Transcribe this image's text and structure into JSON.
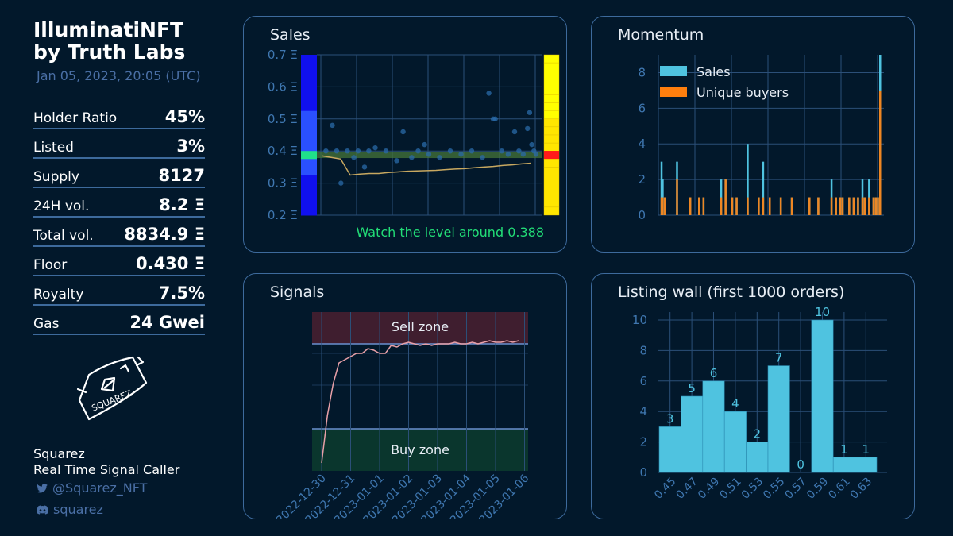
{
  "collection": {
    "name_line1": "IlluminatiNFT",
    "name_line2": "by Truth Labs",
    "date": "Jan 05, 2023, 20:05 (UTC)"
  },
  "stats": [
    {
      "label": "Holder Ratio",
      "value": "45%"
    },
    {
      "label": "Listed",
      "value": "3%"
    },
    {
      "label": "Supply",
      "value": "8127"
    },
    {
      "label": "24H vol.",
      "value": "8.2 Ξ"
    },
    {
      "label": "Total vol.",
      "value": "8834.9 Ξ"
    },
    {
      "label": "Floor",
      "value": "0.430 Ξ"
    },
    {
      "label": "Royalty",
      "value": "7.5%"
    },
    {
      "label": "Gas",
      "value": "24 Gwei"
    }
  ],
  "signature": {
    "text": "SQUAREZ"
  },
  "creator": {
    "name": "Squarez",
    "tagline": "Real Time Signal Caller",
    "twitter": "@Squarez_NFT",
    "discord": "squarez"
  },
  "icons": {
    "twitter": "twitter-icon",
    "discord": "discord-icon"
  },
  "colors": {
    "background": "#02182b",
    "border": "#3d6a9c",
    "muted": "#4a6fa5",
    "sales": "#4fc3e0",
    "buyers": "#ff7f0e",
    "signal_line": "#e8a0a8",
    "watch_text": "#22dd77"
  },
  "chart_data": [
    {
      "id": "sales",
      "type": "scatter",
      "title": "Sales",
      "y_ticks": [
        "0.7 Ξ",
        "0.6 Ξ",
        "0.5 Ξ",
        "0.4 Ξ",
        "0.3 Ξ",
        "0.2 Ξ"
      ],
      "ylim": [
        0.2,
        0.7
      ],
      "annotation": "Watch the level around 0.388",
      "level": 0.388,
      "x": [
        0.02,
        0.05,
        0.07,
        0.09,
        0.12,
        0.15,
        0.17,
        0.2,
        0.22,
        0.25,
        0.3,
        0.35,
        0.38,
        0.42,
        0.45,
        0.48,
        0.5,
        0.55,
        0.6,
        0.65,
        0.7,
        0.75,
        0.78,
        0.8,
        0.81,
        0.84,
        0.87,
        0.9,
        0.92,
        0.94,
        0.96,
        0.97,
        0.98,
        0.99,
        1.0
      ],
      "y": [
        0.4,
        0.48,
        0.4,
        0.3,
        0.4,
        0.38,
        0.4,
        0.35,
        0.4,
        0.41,
        0.4,
        0.37,
        0.46,
        0.38,
        0.4,
        0.42,
        0.39,
        0.38,
        0.4,
        0.39,
        0.4,
        0.38,
        0.58,
        0.5,
        0.5,
        0.4,
        0.39,
        0.46,
        0.4,
        0.39,
        0.47,
        0.52,
        0.42,
        0.4,
        0.39
      ],
      "trend": [
        0.385,
        0.38,
        0.375,
        0.325,
        0.328,
        0.33,
        0.33,
        0.333,
        0.335,
        0.337,
        0.338,
        0.339,
        0.34,
        0.342,
        0.344,
        0.345,
        0.348,
        0.35,
        0.352,
        0.355,
        0.357,
        0.36,
        0.362
      ],
      "left_bar_levels": [
        0.1,
        0.1,
        0.1,
        0.1,
        0.1,
        0.2,
        0.3,
        0.35,
        0.35,
        0.5,
        0.5,
        0.6,
        0.9,
        0.6,
        0.4,
        0.3,
        0.1,
        0.1,
        0.1,
        0.05
      ],
      "right_bar_highlight": 0.388
    },
    {
      "id": "momentum",
      "type": "bar",
      "title": "Momentum",
      "legend": [
        "Sales",
        "Unique buyers"
      ],
      "ylim": [
        0,
        9
      ],
      "y_ticks": [
        "8",
        "6",
        "4",
        "2",
        "0"
      ],
      "x": [
        0.01,
        0.015,
        0.025,
        0.08,
        0.14,
        0.18,
        0.2,
        0.28,
        0.3,
        0.33,
        0.35,
        0.4,
        0.45,
        0.47,
        0.5,
        0.55,
        0.6,
        0.68,
        0.72,
        0.78,
        0.8,
        0.82,
        0.83,
        0.86,
        0.88,
        0.9,
        0.92,
        0.93,
        0.95,
        0.97,
        0.98,
        0.99,
        1.0
      ],
      "series": [
        {
          "name": "Sales",
          "values": [
            3,
            2,
            1,
            3,
            1,
            1,
            1,
            2,
            2,
            1,
            1,
            4,
            1,
            3,
            1,
            1,
            1,
            1,
            1,
            2,
            1,
            1,
            1,
            1,
            1,
            1,
            2,
            1,
            2,
            1,
            1,
            1,
            9
          ]
        },
        {
          "name": "Unique buyers",
          "values": [
            1,
            1,
            1,
            2,
            1,
            1,
            1,
            1,
            2,
            1,
            1,
            1,
            1,
            1,
            1,
            1,
            1,
            1,
            1,
            1,
            1,
            1,
            1,
            1,
            1,
            1,
            1,
            1,
            1,
            1,
            1,
            1,
            7
          ]
        }
      ]
    },
    {
      "id": "signals",
      "type": "line",
      "title": "Signals",
      "zones": [
        "Sell zone",
        "Buy zone"
      ],
      "x_ticks": [
        "2022-12-30",
        "2022-12-31",
        "2023-01-01",
        "2023-01-02",
        "2023-01-03",
        "2023-01-04",
        "2023-01-05",
        "2023-01-06"
      ],
      "series_y": [
        0.05,
        0.35,
        0.55,
        0.68,
        0.7,
        0.72,
        0.74,
        0.74,
        0.77,
        0.76,
        0.74,
        0.74,
        0.79,
        0.78,
        0.8,
        0.81,
        0.8,
        0.79,
        0.8,
        0.79,
        0.8,
        0.8,
        0.8,
        0.81,
        0.8,
        0.8,
        0.81,
        0.8,
        0.81,
        0.82,
        0.81,
        0.81,
        0.82,
        0.81,
        0.82
      ]
    },
    {
      "id": "listing_wall",
      "type": "bar",
      "title": "Listing wall (first 1000 orders)",
      "categories": [
        "0.45",
        "0.47",
        "0.49",
        "0.51",
        "0.53",
        "0.55",
        "0.57",
        "0.59",
        "0.61",
        "0.63"
      ],
      "values": [
        3,
        5,
        6,
        4,
        2,
        7,
        0,
        10,
        1,
        1
      ],
      "labels": [
        "3",
        "5",
        "6",
        "4",
        "2",
        "7",
        "0",
        "10",
        "1",
        "1"
      ],
      "ylim": [
        0,
        10
      ],
      "y_ticks": [
        "10",
        "8",
        "6",
        "4",
        "2",
        "0"
      ]
    }
  ]
}
